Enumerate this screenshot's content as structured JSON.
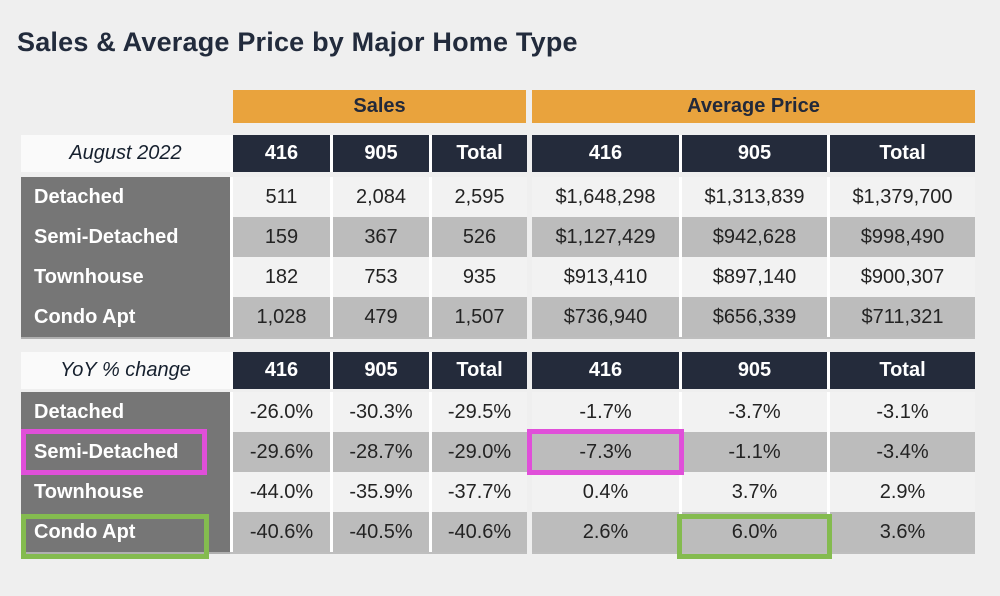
{
  "page": {
    "title": "Sales & Average Price by Major Home Type"
  },
  "bands": {
    "sales": "Sales",
    "avg_price": "Average Price"
  },
  "columns": [
    "416",
    "905",
    "Total"
  ],
  "block1": {
    "corner": "August 2022",
    "rows": [
      {
        "label": "Detached",
        "sales": [
          "511",
          "2,084",
          "2,595"
        ],
        "avg": [
          "$1,648,298",
          "$1,313,839",
          "$1,379,700"
        ]
      },
      {
        "label": "Semi-Detached",
        "sales": [
          "159",
          "367",
          "526"
        ],
        "avg": [
          "$1,127,429",
          "$942,628",
          "$998,490"
        ]
      },
      {
        "label": "Townhouse",
        "sales": [
          "182",
          "753",
          "935"
        ],
        "avg": [
          "$913,410",
          "$897,140",
          "$900,307"
        ]
      },
      {
        "label": "Condo Apt",
        "sales": [
          "1,028",
          "479",
          "1,507"
        ],
        "avg": [
          "$736,940",
          "$656,339",
          "$711,321"
        ]
      }
    ]
  },
  "block2": {
    "corner": "YoY % change",
    "rows": [
      {
        "label": "Detached",
        "sales": [
          "-26.0%",
          "-30.3%",
          "-29.5%"
        ],
        "avg": [
          "-1.7%",
          "-3.7%",
          "-3.1%"
        ]
      },
      {
        "label": "Semi-Detached",
        "sales": [
          "-29.6%",
          "-28.7%",
          "-29.0%"
        ],
        "avg": [
          "-7.3%",
          "-1.1%",
          "-3.4%"
        ]
      },
      {
        "label": "Townhouse",
        "sales": [
          "-44.0%",
          "-35.9%",
          "-37.7%"
        ],
        "avg": [
          "0.4%",
          "3.7%",
          "2.9%"
        ]
      },
      {
        "label": "Condo Apt",
        "sales": [
          "-40.6%",
          "-40.5%",
          "-40.6%"
        ],
        "avg": [
          "2.6%",
          "6.0%",
          "3.6%"
        ]
      }
    ]
  },
  "colors": {
    "band_orange": "#E9A33D",
    "header_navy": "#242B3B",
    "label_gray": "#767676",
    "row_light": "#F2F2F2",
    "row_gray": "#BCBCBC",
    "highlight_magenta": "#E04FD9",
    "highlight_green": "#84BB4F",
    "page_background": "#EFEFEF"
  },
  "chart_data": {
    "type": "table",
    "title": "Sales & Average Price by Major Home Type",
    "column_groups": [
      "Sales",
      "Average Price"
    ],
    "columns": [
      "416",
      "905",
      "Total"
    ],
    "sections": [
      {
        "name": "August 2022",
        "rows": [
          {
            "home_type": "Detached",
            "sales": [
              511,
              2084,
              2595
            ],
            "average_price": [
              1648298,
              1313839,
              1379700
            ]
          },
          {
            "home_type": "Semi-Detached",
            "sales": [
              159,
              367,
              526
            ],
            "average_price": [
              1127429,
              942628,
              998490
            ]
          },
          {
            "home_type": "Townhouse",
            "sales": [
              182,
              753,
              935
            ],
            "average_price": [
              913410,
              897140,
              900307
            ]
          },
          {
            "home_type": "Condo Apt",
            "sales": [
              1028,
              479,
              1507
            ],
            "average_price": [
              736940,
              656339,
              711321
            ]
          }
        ]
      },
      {
        "name": "YoY % change",
        "rows": [
          {
            "home_type": "Detached",
            "sales_pct": [
              -26.0,
              -30.3,
              -29.5
            ],
            "average_price_pct": [
              -1.7,
              -3.7,
              -3.1
            ]
          },
          {
            "home_type": "Semi-Detached",
            "sales_pct": [
              -29.6,
              -28.7,
              -29.0
            ],
            "average_price_pct": [
              -7.3,
              -1.1,
              -3.4
            ]
          },
          {
            "home_type": "Townhouse",
            "sales_pct": [
              -44.0,
              -35.9,
              -37.7
            ],
            "average_price_pct": [
              0.4,
              3.7,
              2.9
            ]
          },
          {
            "home_type": "Condo Apt",
            "sales_pct": [
              -40.6,
              -40.5,
              -40.6
            ],
            "average_price_pct": [
              2.6,
              6.0,
              3.6
            ]
          }
        ]
      }
    ],
    "highlights": [
      {
        "color": "magenta",
        "targets": [
          "YoY % change / Semi-Detached label",
          "YoY % change / Semi-Detached / Average Price 416 = -7.3%"
        ]
      },
      {
        "color": "green",
        "targets": [
          "YoY % change / Condo Apt label",
          "YoY % change / Condo Apt / Average Price 905 = 6.0%"
        ]
      }
    ]
  }
}
